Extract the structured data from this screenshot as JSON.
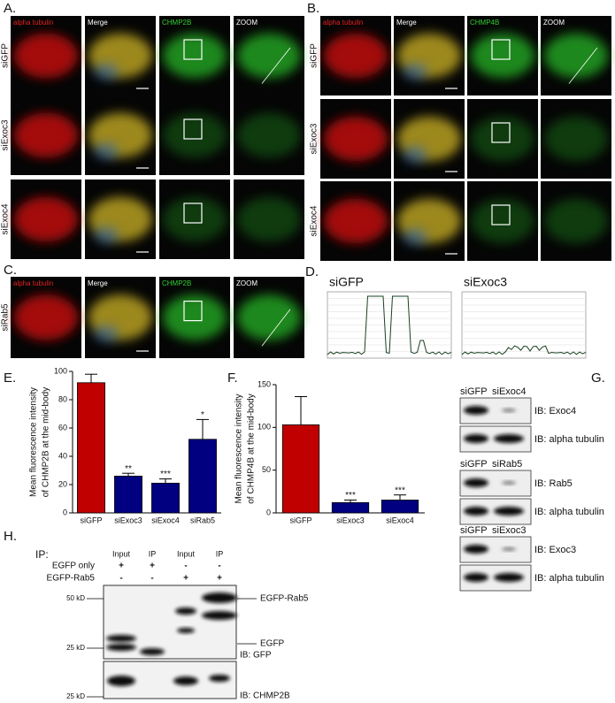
{
  "panels": {
    "A": {
      "label": "A.",
      "columns": [
        "alpha tubulin",
        "Merge",
        "CHMP2B",
        "ZOOM"
      ],
      "rows": [
        "siGFP",
        "siExoc3",
        "siExoc4"
      ]
    },
    "B": {
      "label": "B.",
      "columns": [
        "alpha tubulin",
        "Merge",
        "CHMP4B",
        "ZOOM"
      ],
      "rows": [
        "siGFP",
        "siExoc3",
        "siExoc4"
      ]
    },
    "C": {
      "label": "C.",
      "columns": [
        "alpha tubulin",
        "Merge",
        "CHMP2B",
        "ZOOM"
      ],
      "rows": [
        "siRab5"
      ]
    },
    "D": {
      "label": "D.",
      "plots": [
        "siGFP",
        "siExoc3"
      ]
    },
    "G": {
      "label": "G.",
      "blots": [
        {
          "lanes": [
            "siGFP",
            "siExoc4"
          ],
          "bands": [
            "IB: Exoc4",
            "IB: alpha tubulin"
          ]
        },
        {
          "lanes": [
            "siGFP",
            "siRab5"
          ],
          "bands": [
            "IB: Rab5",
            "IB: alpha tubulin"
          ]
        },
        {
          "lanes": [
            "siGFP",
            "siExoc3"
          ],
          "bands": [
            "IB: Exoc3",
            "IB: alpha tubulin"
          ]
        }
      ]
    },
    "H": {
      "label": "H.",
      "ip": "IP:",
      "lanes": [
        "Input",
        "IP",
        "Input",
        "IP"
      ],
      "conditions": [
        {
          "name": "EGFP only",
          "marks": [
            "+",
            "+",
            "-",
            "-"
          ]
        },
        {
          "name": "EGFP-Rab5",
          "marks": [
            "-",
            "-",
            "+",
            "+"
          ]
        }
      ],
      "markers": [
        "50 kD",
        "25 kD",
        "25 kD"
      ],
      "bands": [
        "EGFP-Rab5",
        "EGFP"
      ],
      "blots": [
        "IB: GFP",
        "IB: CHMP2B"
      ]
    }
  },
  "chart_data": [
    {
      "type": "bar",
      "panel": "E.",
      "y_label": [
        "Mean fluorescence intensity",
        "of CHMP2B at the mid-body"
      ],
      "categories": [
        "siGFP",
        "siExoc3",
        "siExoc4",
        "siRab5"
      ],
      "values": [
        92,
        26,
        21,
        52
      ],
      "errors": [
        6,
        2,
        3,
        14
      ],
      "significance": [
        null,
        "**",
        "***",
        "*"
      ],
      "colors": [
        "#c00000",
        "#000080",
        "#000080",
        "#000080"
      ],
      "ylim": [
        0,
        100
      ],
      "yticks": [
        0,
        20,
        40,
        60,
        80,
        100
      ]
    },
    {
      "type": "bar",
      "panel": "F.",
      "y_label": [
        "Mean fluorescence intensity",
        "of CHMP4B at the mid-body"
      ],
      "categories": [
        "siGFP",
        "siExoc3",
        "siExoc4"
      ],
      "values": [
        103,
        12,
        15
      ],
      "errors": [
        33,
        3,
        6
      ],
      "significance": [
        null,
        "***",
        "***"
      ],
      "colors": [
        "#c00000",
        "#000080",
        "#000080"
      ],
      "ylim": [
        0,
        150
      ],
      "yticks": [
        0,
        50,
        100,
        150
      ]
    }
  ]
}
